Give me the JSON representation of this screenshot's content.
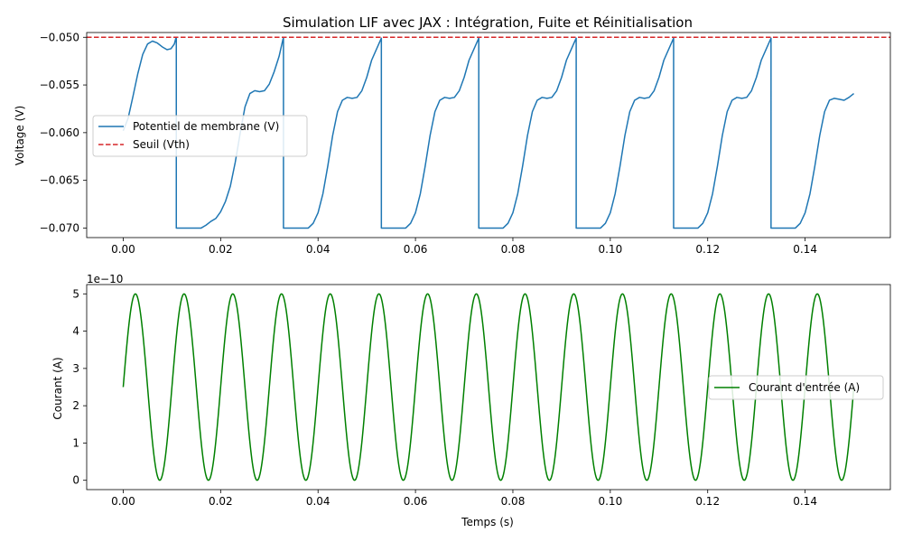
{
  "chart_data": [
    {
      "type": "line",
      "title": "Simulation LIF avec JAX : Intégration, Fuite et Réinitialisation",
      "xlabel": "",
      "ylabel": "Voltage (V)",
      "xlim": [
        -0.0075,
        0.1575
      ],
      "ylim": [
        -0.071,
        -0.0495
      ],
      "x_ticks": [
        0.0,
        0.02,
        0.04,
        0.06,
        0.08,
        0.1,
        0.12,
        0.14
      ],
      "x_tick_labels": [
        "0.00",
        "0.02",
        "0.04",
        "0.06",
        "0.08",
        "0.10",
        "0.12",
        "0.14"
      ],
      "y_ticks": [
        -0.05,
        -0.055,
        -0.06,
        -0.065,
        -0.07
      ],
      "y_tick_labels": [
        "−0.050",
        "−0.055",
        "−0.060",
        "−0.065",
        "−0.070"
      ],
      "legend_placement": "center-left",
      "series": [
        {
          "name": "Potentiel de membrane (V)",
          "color": "#1f77b4",
          "style": "solid",
          "points": [
            [
              0.0,
              -0.0598
            ],
            [
              0.001,
              -0.0585
            ],
            [
              0.002,
              -0.0562
            ],
            [
              0.003,
              -0.0538
            ],
            [
              0.004,
              -0.0518
            ],
            [
              0.005,
              -0.0507
            ],
            [
              0.006,
              -0.0504
            ],
            [
              0.007,
              -0.0506
            ],
            [
              0.008,
              -0.051
            ],
            [
              0.009,
              -0.0513
            ],
            [
              0.0098,
              -0.0512
            ],
            [
              0.0105,
              -0.0507
            ],
            [
              0.0108,
              -0.0501
            ],
            [
              0.0109,
              -0.0501
            ],
            [
              0.0109,
              -0.07
            ],
            [
              0.016,
              -0.07
            ],
            [
              0.017,
              -0.0697
            ],
            [
              0.018,
              -0.0693
            ],
            [
              0.019,
              -0.069
            ],
            [
              0.02,
              -0.0683
            ],
            [
              0.021,
              -0.0672
            ],
            [
              0.022,
              -0.0656
            ],
            [
              0.023,
              -0.0631
            ],
            [
              0.024,
              -0.0601
            ],
            [
              0.025,
              -0.0573
            ],
            [
              0.026,
              -0.0559
            ],
            [
              0.027,
              -0.0556
            ],
            [
              0.028,
              -0.0557
            ],
            [
              0.029,
              -0.0556
            ],
            [
              0.03,
              -0.0549
            ],
            [
              0.031,
              -0.0536
            ],
            [
              0.032,
              -0.052
            ],
            [
              0.0328,
              -0.0502
            ],
            [
              0.0329,
              -0.0501
            ],
            [
              0.0329,
              -0.07
            ],
            [
              0.038,
              -0.07
            ],
            [
              0.039,
              -0.0695
            ],
            [
              0.04,
              -0.0684
            ],
            [
              0.041,
              -0.0664
            ],
            [
              0.042,
              -0.0635
            ],
            [
              0.043,
              -0.0603
            ],
            [
              0.044,
              -0.0578
            ],
            [
              0.045,
              -0.0566
            ],
            [
              0.046,
              -0.0563
            ],
            [
              0.047,
              -0.0564
            ],
            [
              0.048,
              -0.0563
            ],
            [
              0.049,
              -0.0556
            ],
            [
              0.05,
              -0.0542
            ],
            [
              0.051,
              -0.0524
            ],
            [
              0.0529,
              -0.0502
            ],
            [
              0.053,
              -0.0501
            ],
            [
              0.053,
              -0.07
            ],
            [
              0.058,
              -0.07
            ],
            [
              0.059,
              -0.0695
            ],
            [
              0.06,
              -0.0684
            ],
            [
              0.061,
              -0.0664
            ],
            [
              0.062,
              -0.0635
            ],
            [
              0.063,
              -0.0603
            ],
            [
              0.064,
              -0.0578
            ],
            [
              0.065,
              -0.0566
            ],
            [
              0.066,
              -0.0563
            ],
            [
              0.067,
              -0.0564
            ],
            [
              0.068,
              -0.0563
            ],
            [
              0.069,
              -0.0556
            ],
            [
              0.07,
              -0.0542
            ],
            [
              0.071,
              -0.0524
            ],
            [
              0.0729,
              -0.0502
            ],
            [
              0.073,
              -0.0501
            ],
            [
              0.073,
              -0.07
            ],
            [
              0.078,
              -0.07
            ],
            [
              0.079,
              -0.0695
            ],
            [
              0.08,
              -0.0684
            ],
            [
              0.081,
              -0.0664
            ],
            [
              0.082,
              -0.0635
            ],
            [
              0.083,
              -0.0603
            ],
            [
              0.084,
              -0.0578
            ],
            [
              0.085,
              -0.0566
            ],
            [
              0.086,
              -0.0563
            ],
            [
              0.087,
              -0.0564
            ],
            [
              0.088,
              -0.0563
            ],
            [
              0.089,
              -0.0556
            ],
            [
              0.09,
              -0.0542
            ],
            [
              0.091,
              -0.0524
            ],
            [
              0.0929,
              -0.0502
            ],
            [
              0.093,
              -0.0501
            ],
            [
              0.093,
              -0.07
            ],
            [
              0.098,
              -0.07
            ],
            [
              0.099,
              -0.0695
            ],
            [
              0.1,
              -0.0684
            ],
            [
              0.101,
              -0.0664
            ],
            [
              0.102,
              -0.0635
            ],
            [
              0.103,
              -0.0603
            ],
            [
              0.104,
              -0.0578
            ],
            [
              0.105,
              -0.0566
            ],
            [
              0.106,
              -0.0563
            ],
            [
              0.107,
              -0.0564
            ],
            [
              0.108,
              -0.0563
            ],
            [
              0.109,
              -0.0556
            ],
            [
              0.11,
              -0.0542
            ],
            [
              0.111,
              -0.0524
            ],
            [
              0.1129,
              -0.0502
            ],
            [
              0.113,
              -0.0501
            ],
            [
              0.113,
              -0.07
            ],
            [
              0.118,
              -0.07
            ],
            [
              0.119,
              -0.0695
            ],
            [
              0.12,
              -0.0684
            ],
            [
              0.121,
              -0.0664
            ],
            [
              0.122,
              -0.0635
            ],
            [
              0.123,
              -0.0603
            ],
            [
              0.124,
              -0.0578
            ],
            [
              0.125,
              -0.0566
            ],
            [
              0.126,
              -0.0563
            ],
            [
              0.127,
              -0.0564
            ],
            [
              0.128,
              -0.0563
            ],
            [
              0.129,
              -0.0556
            ],
            [
              0.13,
              -0.0542
            ],
            [
              0.131,
              -0.0524
            ],
            [
              0.1329,
              -0.0502
            ],
            [
              0.133,
              -0.0501
            ],
            [
              0.133,
              -0.07
            ],
            [
              0.138,
              -0.07
            ],
            [
              0.139,
              -0.0695
            ],
            [
              0.14,
              -0.0684
            ],
            [
              0.141,
              -0.0664
            ],
            [
              0.142,
              -0.0635
            ],
            [
              0.143,
              -0.0603
            ],
            [
              0.144,
              -0.0578
            ],
            [
              0.145,
              -0.0566
            ],
            [
              0.146,
              -0.0564
            ],
            [
              0.147,
              -0.0565
            ],
            [
              0.148,
              -0.0566
            ],
            [
              0.149,
              -0.0563
            ],
            [
              0.15,
              -0.0559
            ]
          ]
        },
        {
          "name": "Seuil (Vth)",
          "color": "#d62728",
          "style": "dashed",
          "points": [
            [
              -0.0075,
              -0.05
            ],
            [
              0.1575,
              -0.05
            ]
          ]
        }
      ]
    },
    {
      "type": "line",
      "title": "",
      "xlabel": "Temps (s)",
      "ylabel": "Courant (A)",
      "y_offset_label": "1e−10",
      "xlim": [
        -0.0075,
        0.1575
      ],
      "ylim": [
        -0.25,
        5.25
      ],
      "x_ticks": [
        0.0,
        0.02,
        0.04,
        0.06,
        0.08,
        0.1,
        0.12,
        0.14
      ],
      "x_tick_labels": [
        "0.00",
        "0.02",
        "0.04",
        "0.06",
        "0.08",
        "0.10",
        "0.12",
        "0.14"
      ],
      "y_ticks": [
        0,
        1,
        2,
        3,
        4,
        5
      ],
      "y_tick_labels": [
        "0",
        "1",
        "2",
        "3",
        "4",
        "5"
      ],
      "legend_placement": "center-right",
      "series": [
        {
          "name": "Courant d'entrée (A)",
          "color": "#008000",
          "style": "solid",
          "function": {
            "kind": "sine",
            "offset": 2.5,
            "amplitude": 2.5,
            "frequency_hz": 100,
            "x_start": 0.0,
            "x_end": 0.15
          }
        }
      ]
    }
  ]
}
